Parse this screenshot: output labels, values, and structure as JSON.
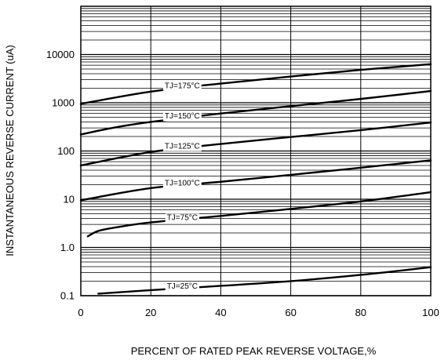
{
  "chart_data": {
    "type": "line",
    "title": "",
    "xlabel": "PERCENT OF RATED PEAK REVERSE VOLTAGE,%",
    "ylabel": "INSTANTANEOUS REVERSE CURRENT (uA)",
    "xlim": [
      0,
      100
    ],
    "ylim": [
      0.1,
      100000
    ],
    "yscale": "log",
    "grid": true,
    "x_ticks": [
      0,
      20,
      40,
      60,
      80,
      100
    ],
    "x_tick_labels": [
      "0",
      "20",
      "40",
      "60",
      "80",
      "100"
    ],
    "y_ticks": [
      0.1,
      1,
      10,
      100,
      1000,
      10000
    ],
    "y_tick_labels": [
      "0.1",
      "1.0",
      "10",
      "100",
      "1000",
      "10000"
    ],
    "series": [
      {
        "name": "TJ=175°C",
        "x": [
          0,
          20,
          40,
          60,
          80,
          100
        ],
        "y": [
          950,
          1700,
          2500,
          3500,
          4800,
          6300
        ]
      },
      {
        "name": "TJ=150°C",
        "x": [
          0,
          10,
          20,
          40,
          60,
          80,
          100
        ],
        "y": [
          220,
          310,
          400,
          600,
          850,
          1200,
          1750
        ]
      },
      {
        "name": "TJ=125°C",
        "x": [
          0,
          20,
          40,
          60,
          80,
          100
        ],
        "y": [
          50,
          95,
          140,
          195,
          270,
          390
        ]
      },
      {
        "name": "TJ=100°C",
        "x": [
          0,
          20,
          40,
          60,
          80,
          100
        ],
        "y": [
          9.5,
          17,
          23,
          32,
          45,
          64
        ]
      },
      {
        "name": "TJ=75°C",
        "x": [
          2,
          5,
          10,
          20,
          40,
          60,
          80,
          100
        ],
        "y": [
          1.7,
          2.2,
          2.6,
          3.3,
          4.5,
          6.3,
          9,
          14
        ]
      },
      {
        "name": "TJ=25°C",
        "x": [
          5,
          20,
          40,
          60,
          80,
          100
        ],
        "y": [
          0.11,
          0.13,
          0.16,
          0.2,
          0.27,
          0.39
        ]
      }
    ]
  }
}
